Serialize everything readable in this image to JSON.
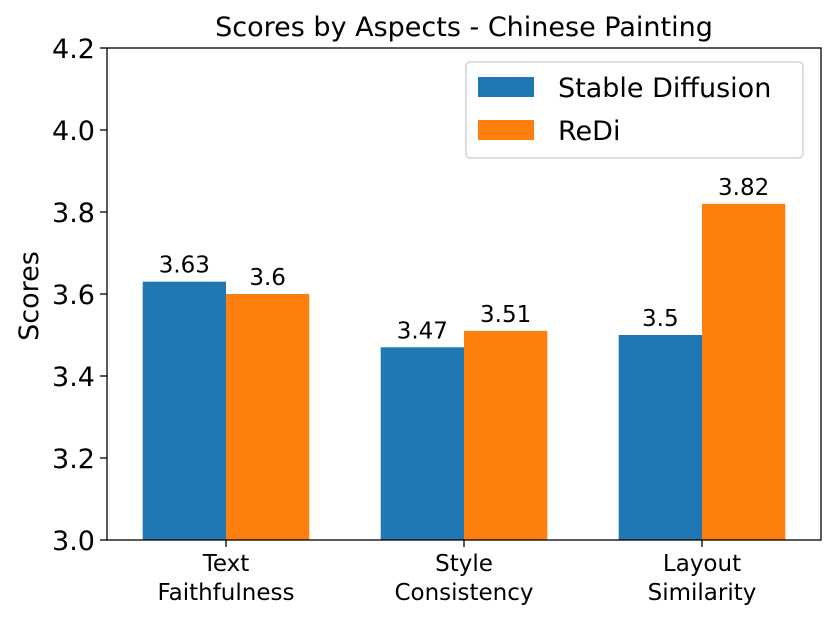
{
  "chart_data": {
    "type": "bar",
    "title": "Scores by Aspects - Chinese Painting",
    "xlabel": "",
    "ylabel": "Scores",
    "ylim": [
      3.0,
      4.2
    ],
    "yticks": [
      "3.0",
      "3.2",
      "3.4",
      "3.6",
      "3.8",
      "4.0",
      "4.2"
    ],
    "categories": [
      [
        "Text",
        "Faithfulness"
      ],
      [
        "Style",
        "Consistency"
      ],
      [
        "Layout",
        "Similarity"
      ]
    ],
    "series": [
      {
        "name": "Stable Diffusion",
        "color": "#1f77b4",
        "values": [
          3.63,
          3.47,
          3.5
        ],
        "labels": [
          "3.63",
          "3.47",
          "3.5"
        ]
      },
      {
        "name": "ReDi",
        "color": "#ff7f0e",
        "values": [
          3.6,
          3.51,
          3.82
        ],
        "labels": [
          "3.6",
          "3.51",
          "3.82"
        ]
      }
    ],
    "legend": {
      "position": "top-right"
    },
    "grid": false
  }
}
